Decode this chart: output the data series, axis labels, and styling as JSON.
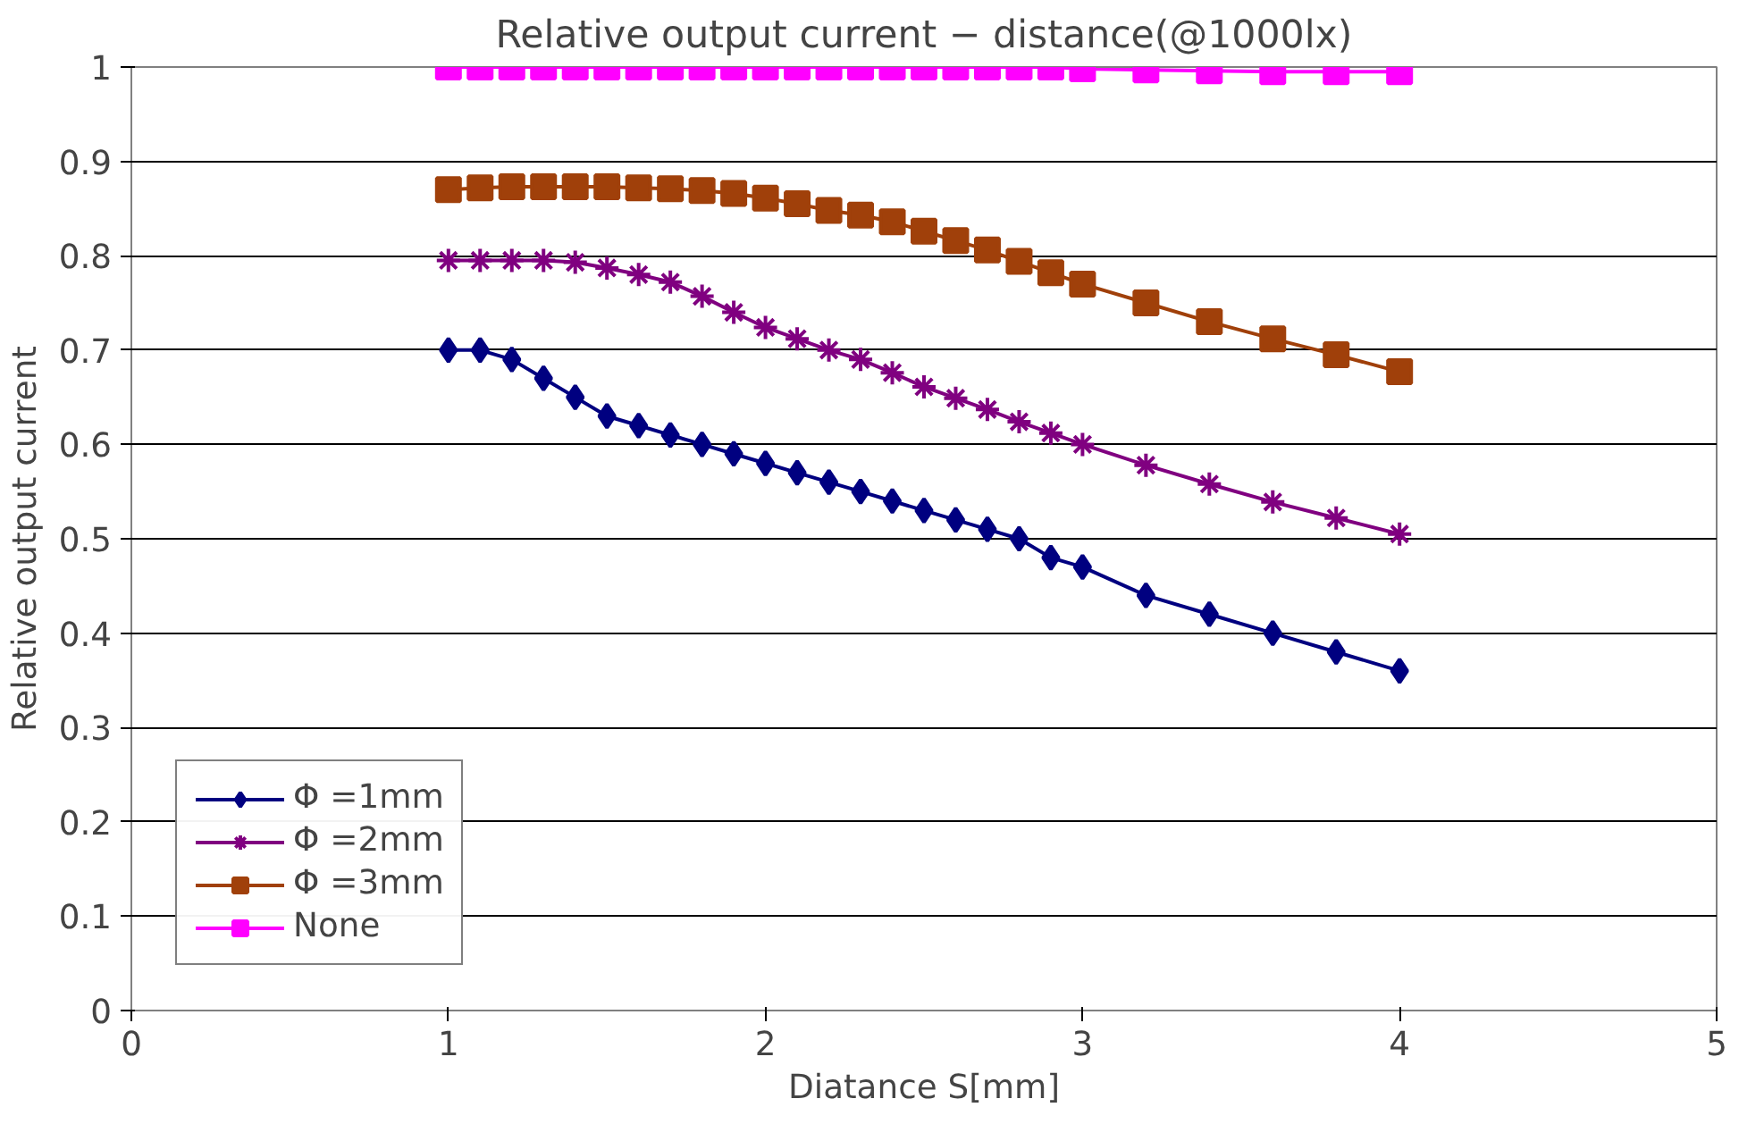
{
  "chart_data": {
    "type": "line",
    "title": "Relative output current − distance(@1000lx)",
    "xlabel": "Diatance S[mm]",
    "ylabel": "Relative output current",
    "x": [
      1,
      1.1,
      1.2,
      1.3,
      1.4,
      1.5,
      1.6,
      1.7,
      1.8,
      1.9,
      2,
      2.1,
      2.2,
      2.3,
      2.4,
      2.5,
      2.6,
      2.7,
      2.8,
      2.9,
      3,
      3.2,
      3.4,
      3.6,
      3.8,
      4
    ],
    "series": [
      {
        "name": "Φ =1mm",
        "color": "#000080",
        "marker": "diamond",
        "values": [
          0.7,
          0.7,
          0.69,
          0.67,
          0.65,
          0.63,
          0.62,
          0.61,
          0.6,
          0.59,
          0.58,
          0.57,
          0.56,
          0.55,
          0.54,
          0.53,
          0.52,
          0.51,
          0.5,
          0.48,
          0.47,
          0.44,
          0.42,
          0.4,
          0.38,
          0.36
        ]
      },
      {
        "name": "Φ =2mm",
        "color": "#800080",
        "marker": "cross",
        "values": [
          0.795,
          0.795,
          0.795,
          0.795,
          0.793,
          0.787,
          0.78,
          0.772,
          0.757,
          0.74,
          0.724,
          0.712,
          0.7,
          0.69,
          0.676,
          0.661,
          0.649,
          0.637,
          0.624,
          0.612,
          0.6,
          0.578,
          0.558,
          0.539,
          0.522,
          0.505
        ]
      },
      {
        "name": "Φ =3mm",
        "color": "#a0400a",
        "marker": "square",
        "values": [
          0.87,
          0.872,
          0.873,
          0.873,
          0.873,
          0.873,
          0.872,
          0.871,
          0.869,
          0.866,
          0.861,
          0.855,
          0.848,
          0.843,
          0.836,
          0.826,
          0.816,
          0.806,
          0.794,
          0.782,
          0.77,
          0.75,
          0.73,
          0.712,
          0.695,
          0.677
        ]
      },
      {
        "name": "None",
        "color": "#ff00ff",
        "marker": "square",
        "values": [
          1,
          1,
          1,
          1,
          1,
          1,
          1,
          1,
          1,
          1,
          1,
          1,
          1,
          1,
          1,
          1,
          1,
          1,
          1,
          1,
          0.998,
          0.997,
          0.996,
          0.995,
          0.995,
          0.995
        ]
      }
    ],
    "xlim": [
      0,
      5
    ],
    "xticks": [
      0,
      1,
      2,
      3,
      4,
      5
    ],
    "ylim": [
      0,
      1
    ],
    "yticks": [
      0,
      0.1,
      0.2,
      0.3,
      0.4,
      0.5,
      0.6,
      0.7,
      0.8,
      0.9,
      1
    ],
    "grid": "y",
    "legend": "bottom left",
    "line_style": "solid"
  }
}
